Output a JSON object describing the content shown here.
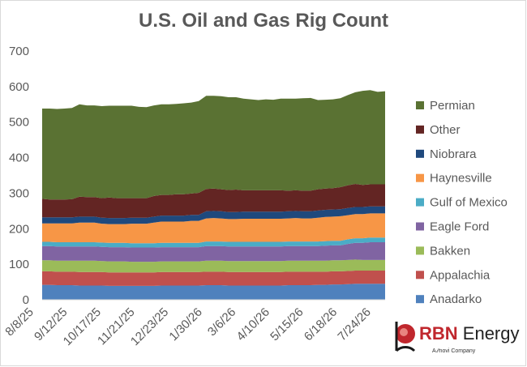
{
  "chart_data": {
    "type": "area",
    "stacked": true,
    "title": "U.S. Oil and Gas Rig Count",
    "ylim": [
      0,
      700
    ],
    "yticks": [
      0,
      100,
      200,
      300,
      400,
      500,
      600,
      700
    ],
    "grid": false,
    "legend_position": "right",
    "x_tick_labels": [
      "8/8/25",
      "9/12/25",
      "10/17/25",
      "11/21/25",
      "12/23/25",
      "1/30/26",
      "3/6/26",
      "4/10/26",
      "5/15/26",
      "6/18/26",
      "7/24/26"
    ],
    "series": [
      {
        "name": "Anadarko",
        "color": "#4f81bd",
        "values": [
          42,
          42,
          41,
          41,
          41,
          40,
          40,
          40,
          40,
          39,
          39,
          39,
          39,
          39,
          39,
          39,
          40,
          40,
          40,
          40,
          40,
          40,
          41,
          41,
          41,
          40,
          40,
          40,
          40,
          40,
          40,
          40,
          40,
          41,
          41,
          41,
          41,
          42,
          42,
          43,
          43,
          44,
          45,
          45,
          45,
          45,
          45
        ]
      },
      {
        "name": "Appalachia",
        "color": "#c0504d",
        "values": [
          38,
          38,
          38,
          38,
          38,
          38,
          38,
          38,
          38,
          38,
          38,
          38,
          38,
          38,
          38,
          38,
          38,
          38,
          38,
          38,
          38,
          38,
          38,
          38,
          38,
          38,
          38,
          38,
          38,
          38,
          38,
          38,
          38,
          38,
          38,
          38,
          38,
          37,
          37,
          37,
          37,
          37,
          37,
          37,
          37,
          37,
          37
        ]
      },
      {
        "name": "Bakken",
        "color": "#9bbb59",
        "values": [
          31,
          31,
          31,
          31,
          31,
          32,
          32,
          32,
          31,
          31,
          31,
          31,
          30,
          30,
          30,
          30,
          30,
          30,
          30,
          30,
          30,
          30,
          31,
          31,
          31,
          31,
          31,
          31,
          31,
          31,
          31,
          31,
          31,
          31,
          31,
          31,
          31,
          31,
          31,
          31,
          31,
          31,
          31,
          30,
          30,
          30,
          30
        ]
      },
      {
        "name": "Eagle Ford",
        "color": "#8064a2",
        "values": [
          40,
          40,
          40,
          40,
          40,
          40,
          40,
          40,
          40,
          40,
          40,
          40,
          40,
          40,
          40,
          40,
          40,
          40,
          40,
          40,
          40,
          40,
          41,
          41,
          41,
          41,
          41,
          41,
          41,
          41,
          41,
          41,
          41,
          41,
          41,
          41,
          41,
          41,
          42,
          42,
          42,
          45,
          47,
          48,
          50,
          50,
          50
        ]
      },
      {
        "name": "Gulf of Mexico",
        "color": "#4bacc6",
        "values": [
          12,
          12,
          12,
          12,
          12,
          12,
          12,
          12,
          12,
          12,
          12,
          12,
          12,
          12,
          12,
          12,
          12,
          12,
          12,
          12,
          12,
          12,
          13,
          13,
          13,
          13,
          13,
          13,
          13,
          13,
          13,
          13,
          13,
          13,
          13,
          13,
          13,
          13,
          13,
          13,
          13,
          13,
          13,
          13,
          13,
          13,
          13
        ]
      },
      {
        "name": "Haynesville",
        "color": "#f79646",
        "values": [
          52,
          52,
          53,
          53,
          53,
          55,
          55,
          55,
          53,
          53,
          53,
          53,
          55,
          55,
          55,
          58,
          60,
          60,
          60,
          60,
          62,
          62,
          65,
          66,
          65,
          64,
          64,
          65,
          65,
          65,
          65,
          65,
          65,
          65,
          66,
          65,
          65,
          67,
          68,
          68,
          69,
          68,
          68,
          68,
          68,
          68,
          68
        ]
      },
      {
        "name": "Niobrara",
        "color": "#1f497d",
        "values": [
          17,
          17,
          17,
          17,
          17,
          17,
          17,
          17,
          17,
          17,
          17,
          17,
          17,
          17,
          17,
          17,
          17,
          17,
          17,
          17,
          17,
          17,
          20,
          20,
          20,
          20,
          20,
          20,
          20,
          20,
          20,
          20,
          20,
          20,
          20,
          20,
          20,
          20,
          20,
          20,
          20,
          20,
          20,
          20,
          20,
          20,
          20
        ]
      },
      {
        "name": "Other",
        "color": "#632523",
        "values": [
          52,
          50,
          50,
          50,
          51,
          56,
          55,
          55,
          55,
          58,
          56,
          56,
          55,
          55,
          55,
          58,
          58,
          58,
          60,
          60,
          60,
          62,
          63,
          63,
          62,
          62,
          63,
          60,
          60,
          60,
          60,
          60,
          60,
          58,
          58,
          58,
          58,
          60,
          60,
          60,
          62,
          64,
          65,
          62,
          62,
          62,
          62
        ]
      },
      {
        "name": "Permian",
        "color": "#5a7233",
        "values": [
          254,
          256,
          255,
          256,
          257,
          260,
          258,
          258,
          259,
          258,
          260,
          260,
          260,
          257,
          256,
          255,
          255,
          255,
          254,
          256,
          256,
          258,
          262,
          261,
          262,
          261,
          260,
          258,
          256,
          254,
          256,
          255,
          258,
          259,
          258,
          260,
          261,
          251,
          250,
          250,
          250,
          254,
          258,
          265,
          265,
          260,
          262
        ]
      }
    ]
  },
  "logo": {
    "brand": "RBN",
    "name": " Energy",
    "tagline": "A ∕∕novi Company",
    "mark": "rb"
  }
}
